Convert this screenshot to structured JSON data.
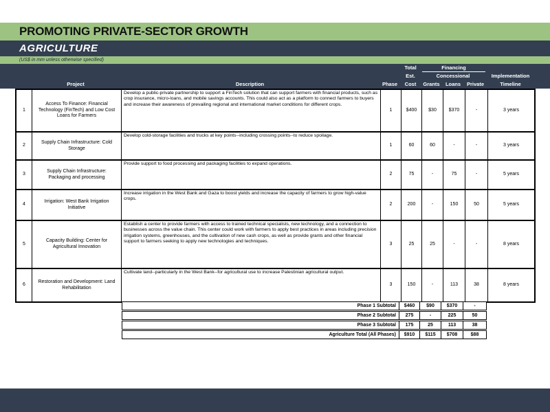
{
  "banner": {
    "title": "PROMOTING PRIVATE-SECTOR GROWTH",
    "section": "AGRICULTURE",
    "units_note": "(US$ in mm unless otherwise specified)"
  },
  "colors": {
    "green": "#9dc383",
    "navy": "#333f50"
  },
  "table": {
    "header": {
      "project": "Project",
      "description": "Description",
      "phase": "Phase",
      "total": "Total",
      "est": "Est.",
      "cost": "Cost",
      "financing": "Financing",
      "concessional": "Concessional",
      "grants": "Grants",
      "loans": "Loans",
      "private": "Private",
      "implementation": "Implementation",
      "timeline": "Timeline"
    },
    "rows": [
      {
        "num": "1",
        "project": "Access To Finance: Financial Technology (FinTech) and Low Cost Loans for Farmers",
        "description": "Develop a public-private partnership to support a FinTech solution that can support farmers with financial products, such as crop insurance, micro-loans, and mobile savings accounts. This could also act as a platform to connect farmers to buyers and increase their awareness of prevailing regional and international market conditions for different crops.",
        "phase": "1",
        "cost": "$400",
        "grants": "$30",
        "loans": "$370",
        "private": "-",
        "timeline": "3 years"
      },
      {
        "num": "2",
        "project": "Supply Chain Infrastructure: Cold Storage",
        "description": "Develop cold-storage facilities and trucks at key points--including crossing points--to reduce spoilage.",
        "phase": "1",
        "cost": "60",
        "grants": "60",
        "loans": "-",
        "private": "-",
        "timeline": "3 years"
      },
      {
        "num": "3",
        "project": "Supply Chain Infrastructure: Packaging and processing",
        "description": "Provide support to food processing and packaging facilities to expand operations.",
        "phase": "2",
        "cost": "75",
        "grants": "-",
        "loans": "75",
        "private": "-",
        "timeline": "5 years"
      },
      {
        "num": "4",
        "project": "Irrigation: West Bank Irrigation Initiative",
        "description": "Increase irrigation in the West Bank and Gaza to boost yields and increase the capacity of farmers to grow high-value crops.",
        "phase": "2",
        "cost": "200",
        "grants": "-",
        "loans": "150",
        "private": "50",
        "timeline": "5 years"
      },
      {
        "num": "5",
        "project": "Capacity Building: Center for Agricultural Innovation",
        "description": "Establish a center to provide farmers with access to trained technical specialists, new technology, and a connection to businesses across the value chain. This center could work with farmers to apply best practices in areas including precision irrigation systems, greenhouses, and the cultivation of new cash crops, as well as provide grants and other financial support to farmers seeking to apply new technologies and techniques.",
        "phase": "3",
        "cost": "25",
        "grants": "25",
        "loans": "-",
        "private": "-",
        "timeline": "8 years"
      },
      {
        "num": "6",
        "project": "Restoration and Development: Land Rehabilitation",
        "description": "Cultivate land--particularly in the West Bank--for agricultural use to increase Palestinian agricultural output.",
        "phase": "3",
        "cost": "150",
        "grants": "-",
        "loans": "113",
        "private": "38",
        "timeline": "8 years"
      }
    ],
    "subtotals": [
      {
        "label": "Phase 1 Subtotal",
        "cost": "$460",
        "grants": "$90",
        "loans": "$370",
        "private": "-"
      },
      {
        "label": "Phase 2 Subtotal",
        "cost": "275",
        "grants": "-",
        "loans": "225",
        "private": "50"
      },
      {
        "label": "Phase 3 Subtotal",
        "cost": "175",
        "grants": "25",
        "loans": "113",
        "private": "38"
      },
      {
        "label": "Agriculture Total (All Phases)",
        "cost": "$910",
        "grants": "$115",
        "loans": "$708",
        "private": "$88"
      }
    ]
  }
}
